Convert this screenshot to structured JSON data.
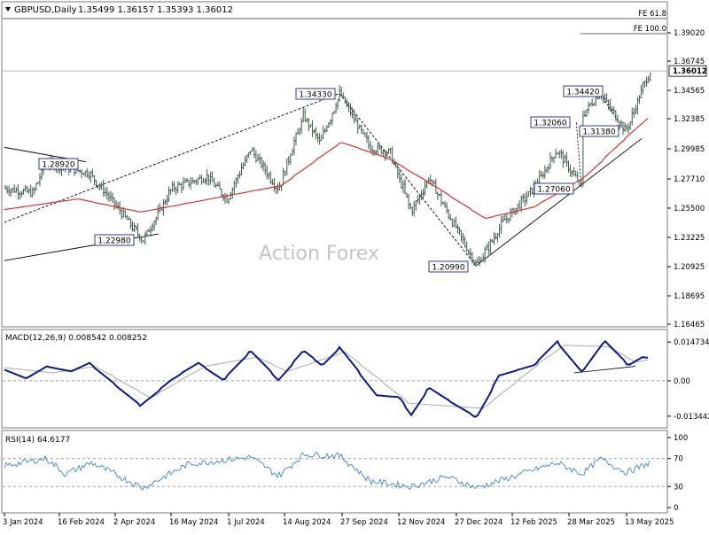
{
  "header": {
    "symbol_text": "GBPUSD,Daily",
    "ohlc_text": "1.35499 1.36157 1.35393 1.36012",
    "watermark": "Action Forex"
  },
  "price_panel": {
    "current_price_label": "1.36012",
    "fib_labels": [
      "FE 61.8",
      "FE 100.0"
    ],
    "annotations": [
      "1.34330",
      "1.28920",
      "1.22980",
      "1.20990",
      "1.34420",
      "1.32060",
      "1.31380",
      "1.27060"
    ]
  },
  "macd_panel": {
    "title": "MACD(12,26,9) 0.008542 0.008252"
  },
  "rsi_panel": {
    "title": "RSI(14) 64.6177"
  },
  "colors": {
    "price_bars": "#3d5a4a",
    "sma": "#d93030",
    "macd": "#0a1a8c",
    "signal": "#a9a9a9",
    "rsi": "#3a86d6",
    "label_border": "#1a2a80"
  },
  "chart_data": [
    {
      "type": "ohlc",
      "symbol": "GBPUSD",
      "timeframe": "Daily",
      "y_ticks": [
        "1.39020",
        "1.36745",
        "1.34565",
        "1.32385",
        "1.29985",
        "1.27710",
        "1.25500",
        "1.23225",
        "1.20925",
        "1.18695",
        "1.16465"
      ],
      "ylim": [
        1.155,
        1.405
      ],
      "x_ticks": [
        "3 Jan 2024",
        "16 Feb 2024",
        "2 Apr 2024",
        "16 May 2024",
        "1 Jul 2024",
        "14 Aug 2024",
        "27 Sep 2024",
        "12 Nov 2024",
        "27 Dec 2024",
        "12 Feb 2025",
        "28 Mar 2025",
        "13 May 2025"
      ],
      "last": {
        "open": 1.35499,
        "high": 1.36157,
        "low": 1.35393,
        "close": 1.36012
      },
      "swing_points": [
        {
          "date": "2024-02-05",
          "value": 1.2892,
          "label": "1.28920"
        },
        {
          "date": "2024-04-22",
          "value": 1.2298,
          "label": "1.22980"
        },
        {
          "date": "2024-09-26",
          "value": 1.3433,
          "label": "1.34330"
        },
        {
          "date": "2025-01-13",
          "value": 1.2099,
          "label": "1.20990"
        },
        {
          "date": "2025-02-28",
          "value": 1.2706,
          "label": "1.27060"
        },
        {
          "date": "2025-04-07",
          "value": 1.2706
        },
        {
          "date": "2025-04-03",
          "value": 1.3206,
          "label": "1.32060"
        },
        {
          "date": "2025-04-21",
          "value": 1.3442,
          "label": "1.34420"
        },
        {
          "date": "2025-05-12",
          "value": 1.3138,
          "label": "1.31380"
        }
      ],
      "moving_average": {
        "approx_points": [
          {
            "date": "2024-01-03",
            "value": 1.254
          },
          {
            "date": "2024-03-01",
            "value": 1.262
          },
          {
            "date": "2024-04-20",
            "value": 1.252
          },
          {
            "date": "2024-06-15",
            "value": 1.262
          },
          {
            "date": "2024-08-10",
            "value": 1.272
          },
          {
            "date": "2024-09-27",
            "value": 1.305
          },
          {
            "date": "2024-11-05",
            "value": 1.292
          },
          {
            "date": "2024-12-10",
            "value": 1.272
          },
          {
            "date": "2025-01-20",
            "value": 1.247
          },
          {
            "date": "2025-02-28",
            "value": 1.256
          },
          {
            "date": "2025-04-10",
            "value": 1.279
          },
          {
            "date": "2025-05-30",
            "value": 1.325
          }
        ]
      },
      "horizontal_levels": [
        {
          "label": "FE 61.8",
          "value": 1.4025
        },
        {
          "label": "FE 100.0",
          "value": 1.3895
        },
        {
          "label": "1.36012",
          "value": 1.36012
        }
      ],
      "grid": false
    },
    {
      "type": "line",
      "title": "MACD(12,26,9) 0.008542 0.008252",
      "y_ticks": [
        "0.014734",
        "0.00",
        "-0.013442"
      ],
      "ylim": [
        -0.0155,
        0.0168
      ],
      "zero_line": true,
      "series": [
        {
          "name": "MACD",
          "points": [
            {
              "date": "2024-01-03",
              "value": 0.0042
            },
            {
              "date": "2024-01-20",
              "value": 0.0008
            },
            {
              "date": "2024-02-05",
              "value": 0.0055
            },
            {
              "date": "2024-02-25",
              "value": 0.0035
            },
            {
              "date": "2024-03-10",
              "value": 0.0068
            },
            {
              "date": "2024-04-20",
              "value": -0.0095
            },
            {
              "date": "2024-05-15",
              "value": 0.0005
            },
            {
              "date": "2024-06-05",
              "value": 0.0068
            },
            {
              "date": "2024-06-25",
              "value": 0.0002
            },
            {
              "date": "2024-07-17",
              "value": 0.0115
            },
            {
              "date": "2024-08-08",
              "value": 0.0002
            },
            {
              "date": "2024-08-28",
              "value": 0.0115
            },
            {
              "date": "2024-09-12",
              "value": 0.0058
            },
            {
              "date": "2024-09-26",
              "value": 0.0128
            },
            {
              "date": "2024-10-25",
              "value": -0.0055
            },
            {
              "date": "2024-11-12",
              "value": -0.0062
            },
            {
              "date": "2024-11-22",
              "value": -0.013
            },
            {
              "date": "2024-12-06",
              "value": -0.0025
            },
            {
              "date": "2024-12-20",
              "value": -0.007
            },
            {
              "date": "2025-01-13",
              "value": -0.014
            },
            {
              "date": "2025-01-31",
              "value": 0.002
            },
            {
              "date": "2025-02-28",
              "value": 0.006
            },
            {
              "date": "2025-03-18",
              "value": 0.015
            },
            {
              "date": "2025-04-07",
              "value": 0.003
            },
            {
              "date": "2025-04-25",
              "value": 0.0155
            },
            {
              "date": "2025-05-14",
              "value": 0.0058
            },
            {
              "date": "2025-05-25",
              "value": 0.009
            },
            {
              "date": "2025-06-01",
              "value": 0.0086
            }
          ]
        },
        {
          "name": "Signal",
          "points": [
            {
              "date": "2024-01-03",
              "value": 0.005
            },
            {
              "date": "2024-02-10",
              "value": 0.003
            },
            {
              "date": "2024-03-15",
              "value": 0.0055
            },
            {
              "date": "2024-04-28",
              "value": -0.0065
            },
            {
              "date": "2024-06-10",
              "value": 0.0055
            },
            {
              "date": "2024-07-22",
              "value": 0.009
            },
            {
              "date": "2024-08-15",
              "value": 0.0035
            },
            {
              "date": "2024-09-30",
              "value": 0.011
            },
            {
              "date": "2024-11-20",
              "value": -0.0085
            },
            {
              "date": "2025-01-18",
              "value": -0.0105
            },
            {
              "date": "2025-03-05",
              "value": 0.007
            },
            {
              "date": "2025-03-24",
              "value": 0.0135
            },
            {
              "date": "2025-04-28",
              "value": 0.013
            },
            {
              "date": "2025-05-20",
              "value": 0.007
            },
            {
              "date": "2025-06-01",
              "value": 0.0083
            }
          ]
        }
      ]
    },
    {
      "type": "line",
      "title": "RSI(14) 64.6177",
      "y_ticks": [
        "100",
        "70",
        "30",
        "0"
      ],
      "ylim": [
        0,
        100
      ],
      "levels": [
        70,
        30
      ],
      "series": [
        {
          "name": "RSI(14)",
          "points": [
            {
              "date": "2024-01-03",
              "value": 60
            },
            {
              "date": "2024-02-05",
              "value": 70
            },
            {
              "date": "2024-02-20",
              "value": 48
            },
            {
              "date": "2024-03-12",
              "value": 64
            },
            {
              "date": "2024-04-22",
              "value": 28
            },
            {
              "date": "2024-05-28",
              "value": 62
            },
            {
              "date": "2024-07-17",
              "value": 72
            },
            {
              "date": "2024-08-08",
              "value": 45
            },
            {
              "date": "2024-08-28",
              "value": 76
            },
            {
              "date": "2024-09-26",
              "value": 74
            },
            {
              "date": "2024-10-20",
              "value": 38
            },
            {
              "date": "2024-11-22",
              "value": 30
            },
            {
              "date": "2024-12-20",
              "value": 44
            },
            {
              "date": "2025-01-13",
              "value": 28
            },
            {
              "date": "2025-03-18",
              "value": 64
            },
            {
              "date": "2025-04-07",
              "value": 48
            },
            {
              "date": "2025-04-22",
              "value": 70
            },
            {
              "date": "2025-05-12",
              "value": 50
            },
            {
              "date": "2025-06-01",
              "value": 64.6177
            }
          ]
        }
      ]
    }
  ]
}
